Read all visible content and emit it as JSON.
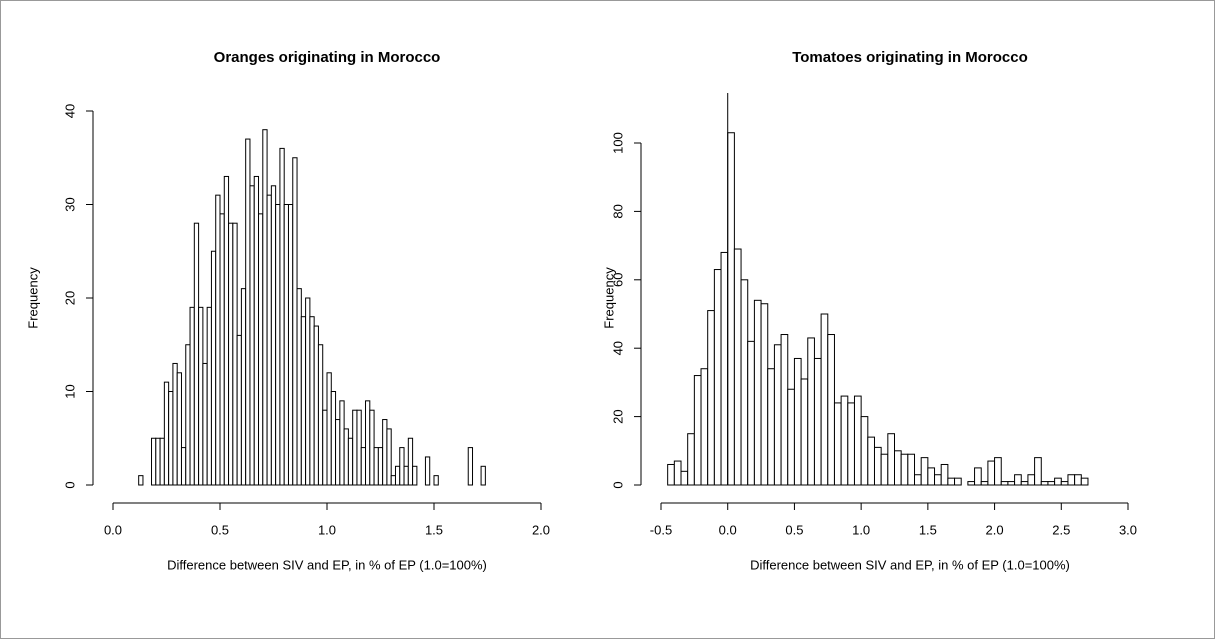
{
  "chart_data": [
    {
      "type": "histogram",
      "title": "Oranges originating in Morocco",
      "x_label": "Difference between SIV and EP, in % of EP (1.0=100%)",
      "y_label": "Frequency",
      "bins": [
        0.12,
        0.14,
        0.16,
        0.18,
        0.2,
        0.22,
        0.24,
        0.26,
        0.28,
        0.3,
        0.32,
        0.34,
        0.36,
        0.38,
        0.4,
        0.42,
        0.44,
        0.46,
        0.48,
        0.5,
        0.52,
        0.54,
        0.56,
        0.58,
        0.6,
        0.62,
        0.64,
        0.66,
        0.68,
        0.7,
        0.72,
        0.74,
        0.76,
        0.78,
        0.8,
        0.82,
        0.84,
        0.86,
        0.88,
        0.9,
        0.92,
        0.94,
        0.96,
        0.98,
        1.0,
        1.02,
        1.04,
        1.06,
        1.08,
        1.1,
        1.12,
        1.14,
        1.16,
        1.18,
        1.2,
        1.22,
        1.24,
        1.26,
        1.28,
        1.3,
        1.32,
        1.34,
        1.36,
        1.38,
        1.4,
        1.42,
        1.44,
        1.46,
        1.48,
        1.5,
        1.52,
        1.54,
        1.56,
        1.58,
        1.6,
        1.62,
        1.64,
        1.66,
        1.68,
        1.7,
        1.72,
        1.74
      ],
      "values": [
        1,
        0,
        0,
        5,
        5,
        5,
        11,
        10,
        13,
        12,
        4,
        15,
        19,
        28,
        19,
        13,
        19,
        25,
        31,
        29,
        33,
        28,
        28,
        16,
        21,
        37,
        32,
        33,
        29,
        38,
        31,
        32,
        30,
        36,
        30,
        30,
        35,
        21,
        18,
        20,
        18,
        17,
        15,
        8,
        12,
        10,
        7,
        9,
        6,
        5,
        8,
        8,
        4,
        9,
        8,
        4,
        4,
        7,
        6,
        1,
        2,
        4,
        2,
        5,
        2,
        0,
        0,
        3,
        0,
        1,
        0,
        0,
        0,
        0,
        0,
        0,
        0,
        4,
        0,
        0,
        2
      ],
      "color": "#ffffff",
      "xlim": [
        0,
        2
      ],
      "ylim": [
        0,
        40
      ],
      "xticks": [
        {
          "value": 0,
          "label": "0.0"
        },
        {
          "value": 0.5,
          "label": "0.5"
        },
        {
          "value": 1,
          "label": "1.0"
        },
        {
          "value": 1.5,
          "label": "1.5"
        },
        {
          "value": 2,
          "label": "2.0"
        }
      ],
      "yticks": [
        0,
        10,
        20,
        30,
        40
      ]
    },
    {
      "type": "histogram",
      "title": "Tomatoes originating in Morocco",
      "x_label": "Difference between SIV and EP, in % of EP (1.0=100%)",
      "y_label": "Frequency",
      "bins": [
        -0.45,
        -0.4,
        -0.35,
        -0.3,
        -0.25,
        -0.2,
        -0.15,
        -0.1,
        -0.05,
        0.0,
        0.05,
        0.1,
        0.15,
        0.2,
        0.25,
        0.3,
        0.35,
        0.4,
        0.45,
        0.5,
        0.55,
        0.6,
        0.65,
        0.7,
        0.75,
        0.8,
        0.85,
        0.9,
        0.95,
        1.0,
        1.05,
        1.1,
        1.15,
        1.2,
        1.25,
        1.3,
        1.35,
        1.4,
        1.45,
        1.5,
        1.55,
        1.6,
        1.65,
        1.7,
        1.75,
        1.8,
        1.85,
        1.9,
        1.95,
        2.0,
        2.05,
        2.1,
        2.15,
        2.2,
        2.25,
        2.3,
        2.35,
        2.4,
        2.45,
        2.5,
        2.55,
        2.6,
        2.65,
        2.7
      ],
      "values": [
        6,
        7,
        4,
        15,
        32,
        34,
        51,
        63,
        68,
        103,
        69,
        60,
        42,
        54,
        53,
        34,
        41,
        44,
        28,
        37,
        31,
        43,
        37,
        50,
        44,
        24,
        26,
        24,
        26,
        20,
        14,
        11,
        9,
        15,
        10,
        9,
        9,
        3,
        8,
        5,
        3,
        6,
        2,
        2,
        0,
        1,
        5,
        1,
        7,
        8,
        1,
        1,
        3,
        1,
        3,
        8,
        1,
        1,
        2,
        1,
        3,
        3,
        2
      ],
      "color": "#ffffff",
      "vline": 0,
      "xlim": [
        -0.5,
        3
      ],
      "ylim": [
        0,
        100
      ],
      "xticks": [
        {
          "value": -0.5,
          "label": "-0.5"
        },
        {
          "value": 0,
          "label": "0.0"
        },
        {
          "value": 0.5,
          "label": "0.5"
        },
        {
          "value": 1,
          "label": "1.0"
        },
        {
          "value": 1.5,
          "label": "1.5"
        },
        {
          "value": 2,
          "label": "2.0"
        },
        {
          "value": 2.5,
          "label": "2.5"
        },
        {
          "value": 3,
          "label": "3.0"
        }
      ],
      "yticks": [
        0,
        20,
        40,
        60,
        80,
        100
      ]
    }
  ]
}
